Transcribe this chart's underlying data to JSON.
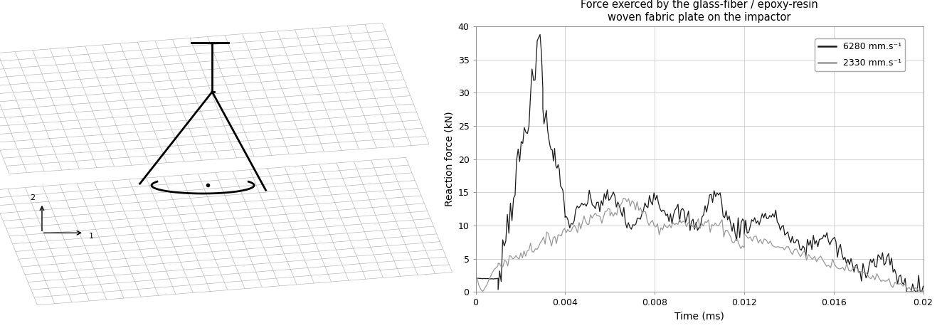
{
  "title_line1": "Force exerced by the glass-fiber / epoxy-resin",
  "title_line2": "woven fabric plate on the impactor",
  "xlabel": "Time (ms)",
  "ylabel": "Reaction force (kN)",
  "xlim": [
    0,
    0.02
  ],
  "ylim": [
    0,
    40
  ],
  "xticks": [
    0,
    0.004,
    0.008,
    0.012,
    0.016,
    0.02
  ],
  "yticks": [
    0,
    5,
    10,
    15,
    20,
    25,
    30,
    35,
    40
  ],
  "legend_labels": [
    "6280 mm.s⁻¹",
    "2330 mm.s⁻¹"
  ],
  "color_fast": "#1a1a1a",
  "color_slow": "#999999",
  "background_color": "#ffffff",
  "grid_color": "#cccccc",
  "title_fontsize": 10.5,
  "axis_fontsize": 10,
  "tick_fontsize": 9,
  "mesh_color": "#aaaaaa",
  "mesh_lw": 0.4,
  "n_rows": 15,
  "n_cols": 24
}
